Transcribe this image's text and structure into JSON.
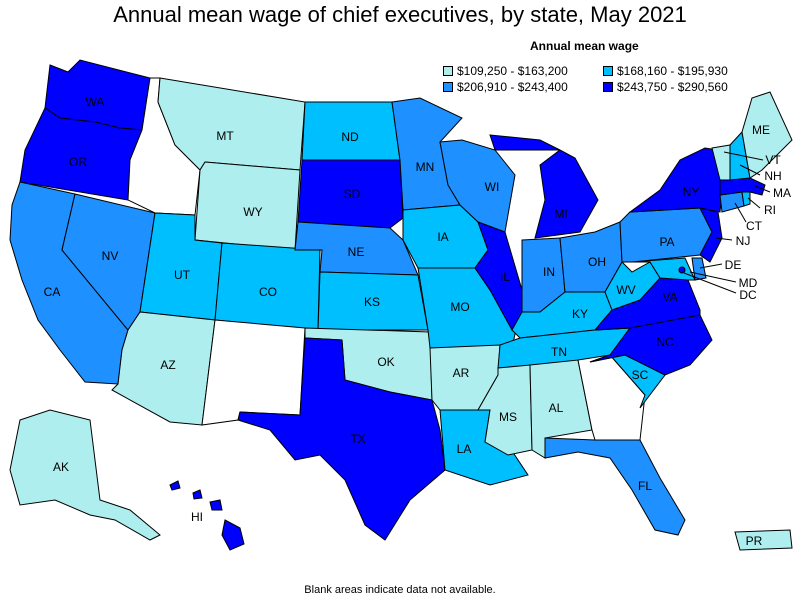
{
  "title": "Annual mean wage of chief executives, by state, May 2021",
  "legend": {
    "title": "Annual mean wage",
    "items": [
      {
        "label": "$109,250 - $163,200",
        "color": "#aeeeee"
      },
      {
        "label": "$168,160 - $195,930",
        "color": "#00bfff"
      },
      {
        "label": "$206,910 - $243,400",
        "color": "#1e90ff"
      },
      {
        "label": "$243,750 - $290,560",
        "color": "#0000ff"
      }
    ]
  },
  "footnote": "Blank areas indicate data not available.",
  "states": {
    "WA": 3,
    "OR": 3,
    "CA": 2,
    "NV": 2,
    "ID": -1,
    "MT": 0,
    "WY": 0,
    "UT": 1,
    "AZ": 0,
    "CO": 1,
    "NM": -1,
    "ND": 1,
    "SD": 3,
    "NE": 2,
    "KS": 1,
    "OK": 0,
    "TX": 3,
    "MN": 2,
    "IA": 1,
    "MO": 1,
    "AR": 0,
    "LA": 1,
    "WI": 2,
    "IL": 3,
    "MI": 3,
    "IN": 2,
    "OH": 2,
    "KY": 1,
    "TN": 1,
    "MS": 0,
    "AL": 0,
    "GA": -1,
    "FL": 2,
    "SC": 1,
    "NC": 3,
    "VA": 3,
    "WV": 1,
    "MD": 1,
    "DC": 3,
    "DE": 2,
    "PA": 2,
    "NJ": 3,
    "NY": 3,
    "CT": 2,
    "RI": 1,
    "MA": 3,
    "VT": 0,
    "NH": 1,
    "ME": 0,
    "AK": 0,
    "HI": 3,
    "PR": 0
  },
  "labels": {
    "WA": "WA",
    "OR": "OR",
    "CA": "CA",
    "NV": "NV",
    "MT": "MT",
    "WY": "WY",
    "UT": "UT",
    "AZ": "AZ",
    "CO": "CO",
    "ND": "ND",
    "SD": "SD",
    "NE": "NE",
    "KS": "KS",
    "OK": "OK",
    "TX": "TX",
    "MN": "MN",
    "IA": "IA",
    "MO": "MO",
    "AR": "AR",
    "LA": "LA",
    "WI": "WI",
    "IL": "IL",
    "MI": "MI",
    "IN": "IN",
    "OH": "OH",
    "KY": "KY",
    "TN": "TN",
    "MS": "MS",
    "AL": "AL",
    "FL": "FL",
    "SC": "SC",
    "NC": "NC",
    "VA": "VA",
    "WV": "WV",
    "PA": "PA",
    "NY": "NY",
    "ME": "ME",
    "AK": "AK",
    "HI": "HI",
    "PR": "PR",
    "VT": "VT",
    "NH": "NH",
    "MA": "MA",
    "RI": "RI",
    "CT": "CT",
    "NJ": "NJ",
    "DE": "DE",
    "MD": "MD",
    "DC": "DC"
  }
}
